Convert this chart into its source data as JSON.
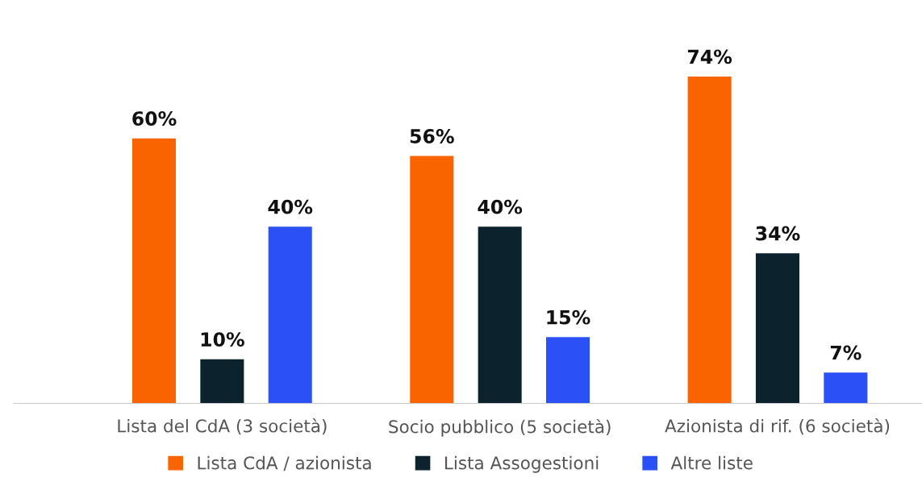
{
  "chart_data": {
    "type": "bar",
    "categories": [
      "Lista del CdA (3 società)",
      "Socio pubblico (5 società)",
      "Azionista di rif. (6 società)"
    ],
    "series": [
      {
        "name": "Lista CdA / azionista",
        "color": "#f96400",
        "values": [
          60,
          56,
          74
        ],
        "value_labels": [
          "60%",
          "56%",
          "74%"
        ]
      },
      {
        "name": "Lista Assogestioni",
        "color": "#0c232e",
        "values": [
          10,
          40,
          34
        ],
        "value_labels": [
          "10%",
          "40%",
          "34%"
        ]
      },
      {
        "name": "Altre liste",
        "color": "#2b50f5",
        "values": [
          40,
          15,
          7
        ],
        "value_labels": [
          "40%",
          "15%",
          "7%"
        ]
      }
    ],
    "legend": "bottom",
    "grid": false
  }
}
